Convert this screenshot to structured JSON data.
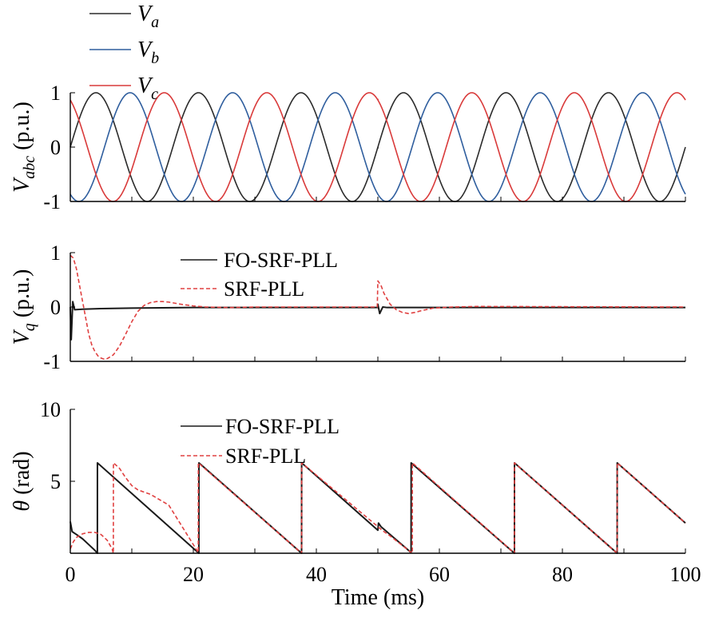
{
  "chart_data": [
    {
      "type": "line",
      "id": "vabc",
      "ylabel": "V_abc (p.u.)",
      "ylabel_parts": {
        "main": "V",
        "sub": "abc",
        "unit": " (p.u.)"
      },
      "xlim": [
        0,
        100
      ],
      "ylim": [
        -1,
        1
      ],
      "yticks": [
        -1,
        0,
        1
      ],
      "ytick_labels": [
        "-1",
        "0",
        "1"
      ],
      "grid": false,
      "legend": {
        "placement": "top-left-outside"
      },
      "x_unit": "ms",
      "series": [
        {
          "name": "V_a",
          "name_parts": {
            "main": "V",
            "sub": "a"
          },
          "color": "#2b2b2b",
          "form": "sine",
          "amplitude": 1,
          "frequency_hz": 60,
          "phase_deg": 0,
          "transient": {
            "at_ms": 50,
            "value_before": -0.02,
            "jump_to": 0,
            "ramp_back_ms": 0.1
          }
        },
        {
          "name": "V_b",
          "name_parts": {
            "main": "V",
            "sub": "b"
          },
          "color": "#2f5e9e",
          "form": "sine",
          "amplitude": 1,
          "frequency_hz": 60,
          "phase_deg": -120,
          "transient": {
            "at_ms": 50,
            "value_before": -0.87
          }
        },
        {
          "name": "V_c",
          "name_parts": {
            "main": "V",
            "sub": "c"
          },
          "color": "#d93a3a",
          "form": "sine",
          "amplitude": 1,
          "frequency_hz": 60,
          "phase_deg": 120,
          "transient": {
            "at_ms": 50,
            "value_before": 0.88
          }
        }
      ]
    },
    {
      "type": "line",
      "id": "vq",
      "ylabel": "V_q (p.u.)",
      "ylabel_parts": {
        "main": "V",
        "sub": "q",
        "unit": " (p.u.)"
      },
      "xlim": [
        0,
        100
      ],
      "ylim": [
        -1,
        1
      ],
      "yticks": [
        -1,
        0,
        1
      ],
      "ytick_labels": [
        "-1",
        "0",
        "1"
      ],
      "grid": false,
      "legend": {
        "placement": "top-center"
      },
      "series": [
        {
          "name": "FO-SRF-PLL",
          "color": "#1a1a1a",
          "dash": "solid",
          "points": [
            [
              0,
              0
            ],
            [
              0.15,
              -0.6
            ],
            [
              0.4,
              0.1
            ],
            [
              0.7,
              -0.05
            ],
            [
              2,
              -0.04
            ],
            [
              5,
              -0.03
            ],
            [
              10,
              -0.02
            ],
            [
              20,
              -0.01
            ],
            [
              49.9,
              -0.01
            ],
            [
              50,
              0.05
            ],
            [
              50.3,
              -0.12
            ],
            [
              50.8,
              0.0
            ],
            [
              51.5,
              -0.01
            ],
            [
              60,
              -0.01
            ],
            [
              100,
              -0.01
            ]
          ]
        },
        {
          "name": "SRF-PLL",
          "color": "#e04040",
          "dash": "dashed",
          "points": [
            [
              0,
              0.95
            ],
            [
              0.5,
              0.9
            ],
            [
              1,
              0.7
            ],
            [
              1.5,
              0.4
            ],
            [
              2,
              0.1
            ],
            [
              2.5,
              -0.2
            ],
            [
              3,
              -0.5
            ],
            [
              3.5,
              -0.7
            ],
            [
              4,
              -0.82
            ],
            [
              4.5,
              -0.9
            ],
            [
              5,
              -0.94
            ],
            [
              5.5,
              -0.96
            ],
            [
              6,
              -0.95
            ],
            [
              7,
              -0.88
            ],
            [
              8,
              -0.72
            ],
            [
              9,
              -0.5
            ],
            [
              10,
              -0.27
            ],
            [
              11,
              -0.08
            ],
            [
              12,
              0.03
            ],
            [
              13,
              0.08
            ],
            [
              14,
              0.1
            ],
            [
              15,
              0.1
            ],
            [
              16,
              0.09
            ],
            [
              18,
              0.05
            ],
            [
              20,
              0.02
            ],
            [
              22,
              0.0
            ],
            [
              26,
              -0.01
            ],
            [
              30,
              0.0
            ],
            [
              49.9,
              0.0
            ],
            [
              50,
              0.48
            ],
            [
              50.5,
              0.4
            ],
            [
              51,
              0.25
            ],
            [
              52,
              0.05
            ],
            [
              53,
              -0.05
            ],
            [
              54,
              -0.1
            ],
            [
              55,
              -0.12
            ],
            [
              56,
              -0.1
            ],
            [
              57,
              -0.07
            ],
            [
              59,
              -0.02
            ],
            [
              62,
              0.0
            ],
            [
              66,
              0.01
            ],
            [
              100,
              0.0
            ]
          ]
        }
      ]
    },
    {
      "type": "line",
      "id": "theta",
      "ylabel": "θ (rad)",
      "ylabel_parts": {
        "main": "θ",
        "sub": "",
        "unit": " (rad)"
      },
      "xlabel": "Time (ms)",
      "xlim": [
        0,
        100
      ],
      "ylim": [
        0,
        10
      ],
      "yticks": [
        5,
        10
      ],
      "ytick_labels": [
        "5",
        "10"
      ],
      "xticks": [
        0,
        20,
        40,
        60,
        80,
        100
      ],
      "xtick_labels": [
        "0",
        "20",
        "40",
        "60",
        "80",
        "100"
      ],
      "grid": false,
      "legend": {
        "placement": "top-center"
      },
      "series": [
        {
          "name": "FO-SRF-PLL",
          "color": "#1a1a1a",
          "dash": "solid",
          "points": [
            [
              0,
              2.2
            ],
            [
              0.3,
              1.5
            ],
            [
              1,
              1.3
            ],
            [
              2,
              1.0
            ],
            [
              3,
              0.6
            ],
            [
              4,
              0.2
            ],
            [
              4.4,
              0.0
            ],
            [
              4.41,
              6.28
            ],
            [
              20.9,
              0.0
            ],
            [
              20.91,
              6.28
            ],
            [
              37.6,
              0.0
            ],
            [
              37.61,
              6.28
            ],
            [
              50,
              1.6
            ],
            [
              50.1,
              2.1
            ],
            [
              50.5,
              1.85
            ],
            [
              55.4,
              0.05
            ],
            [
              55.41,
              6.28
            ],
            [
              72.2,
              0.0
            ],
            [
              72.21,
              6.28
            ],
            [
              88.9,
              0.0
            ],
            [
              88.91,
              6.28
            ],
            [
              100,
              2.1
            ]
          ]
        },
        {
          "name": "SRF-PLL",
          "color": "#e04040",
          "dash": "dashed",
          "points": [
            [
              0,
              0.3
            ],
            [
              0.5,
              0.8
            ],
            [
              1,
              1.1
            ],
            [
              2,
              1.35
            ],
            [
              3,
              1.45
            ],
            [
              4,
              1.45
            ],
            [
              5,
              1.3
            ],
            [
              6,
              0.9
            ],
            [
              6.8,
              0.3
            ],
            [
              7,
              0.0
            ],
            [
              7.01,
              6.28
            ],
            [
              8,
              5.9
            ],
            [
              9,
              5.25
            ],
            [
              10,
              4.7
            ],
            [
              11,
              4.4
            ],
            [
              13,
              4.1
            ],
            [
              16,
              3.35
            ],
            [
              20.8,
              0.05
            ],
            [
              20.81,
              6.28
            ],
            [
              37.6,
              0.0
            ],
            [
              37.61,
              6.28
            ],
            [
              50,
              1.85
            ],
            [
              51,
              1.5
            ],
            [
              52,
              1.2
            ],
            [
              53.5,
              0.7
            ],
            [
              55.6,
              0.0
            ],
            [
              55.61,
              6.28
            ],
            [
              72.2,
              0.0
            ],
            [
              72.21,
              6.28
            ],
            [
              88.9,
              0.0
            ],
            [
              88.91,
              6.28
            ],
            [
              100,
              2.1
            ]
          ]
        }
      ]
    }
  ]
}
